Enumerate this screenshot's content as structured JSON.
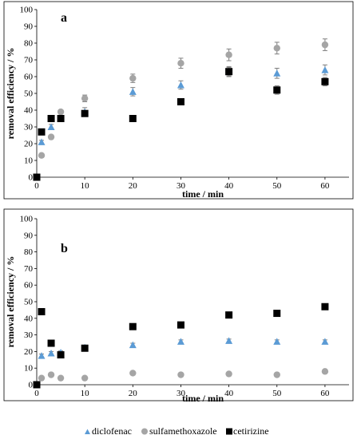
{
  "colors": {
    "diclofenac": "#5b9bd5",
    "sulfamethoxazole": "#a5a5a5",
    "cetirizine": "#000000",
    "errorbar": "#7f7f7f"
  },
  "legend": [
    {
      "name": "diclofenac",
      "marker": "triangle"
    },
    {
      "name": "sulfamethoxazole",
      "marker": "circle"
    },
    {
      "name": "cetirizine",
      "marker": "square"
    }
  ],
  "chart_data": [
    {
      "type": "scatter",
      "panel": "a",
      "xlabel": "time / min",
      "ylabel": "removal efficiency / %",
      "xlim": [
        0,
        65
      ],
      "ylim": [
        0,
        100
      ],
      "xticks": [
        0,
        10,
        20,
        30,
        40,
        50,
        60
      ],
      "yticks": [
        0,
        10,
        20,
        30,
        40,
        50,
        60,
        70,
        80,
        90,
        100
      ],
      "grid": false,
      "series": [
        {
          "name": "diclofenac",
          "x": [
            1,
            3,
            5,
            10,
            20,
            30,
            40,
            50,
            60
          ],
          "y": [
            21,
            30,
            35,
            39,
            51,
            55,
            63,
            62,
            64
          ],
          "err": [
            1,
            1.5,
            1,
            2.5,
            2.5,
            2.5,
            2.5,
            3,
            3
          ]
        },
        {
          "name": "sulfamethoxazole",
          "x": [
            1,
            3,
            5,
            10,
            20,
            30,
            40,
            50,
            60
          ],
          "y": [
            13,
            24,
            39,
            47,
            59,
            68,
            73,
            77,
            79
          ],
          "err": [
            1,
            1,
            1,
            2,
            2.5,
            3,
            3.5,
            3.5,
            3.5
          ]
        },
        {
          "name": "cetirizine",
          "x": [
            0,
            1,
            3,
            5,
            10,
            20,
            30,
            40,
            50,
            60
          ],
          "y": [
            0,
            27,
            35,
            35,
            38,
            35,
            45,
            63,
            52,
            57
          ],
          "err": [
            0,
            0,
            0,
            0,
            0,
            0,
            1.5,
            3,
            2.5,
            2.5
          ]
        }
      ]
    },
    {
      "type": "scatter",
      "panel": "b",
      "xlabel": "time / min",
      "ylabel": "removal efficiency / %",
      "xlim": [
        0,
        65
      ],
      "ylim": [
        0,
        100
      ],
      "xticks": [
        0,
        10,
        20,
        30,
        40,
        50,
        60
      ],
      "yticks": [
        0,
        10,
        20,
        30,
        40,
        50,
        60,
        70,
        80,
        90,
        100
      ],
      "grid": false,
      "series": [
        {
          "name": "diclofenac",
          "x": [
            1,
            3,
            5,
            10,
            20,
            30,
            40,
            50,
            60
          ],
          "y": [
            17.5,
            19,
            19.5,
            22.5,
            24,
            26,
            26.5,
            26,
            26
          ],
          "err": [
            1,
            1,
            1,
            1,
            1,
            1,
            1,
            1,
            1
          ]
        },
        {
          "name": "sulfamethoxazole",
          "x": [
            1,
            3,
            5,
            10,
            20,
            30,
            40,
            50,
            60
          ],
          "y": [
            4,
            6,
            4,
            4,
            7,
            6,
            6.5,
            6,
            8
          ],
          "err": [
            0.5,
            0.5,
            0.5,
            0.5,
            0.5,
            0.5,
            0.5,
            0.5,
            0.5
          ]
        },
        {
          "name": "cetirizine",
          "x": [
            0,
            1,
            3,
            5,
            10,
            20,
            30,
            40,
            50,
            60
          ],
          "y": [
            0,
            44,
            25,
            18,
            22,
            35,
            36,
            42,
            43,
            47
          ],
          "err": [
            0,
            1,
            1,
            1,
            1,
            1,
            1,
            1,
            1,
            1.5
          ]
        }
      ]
    }
  ]
}
